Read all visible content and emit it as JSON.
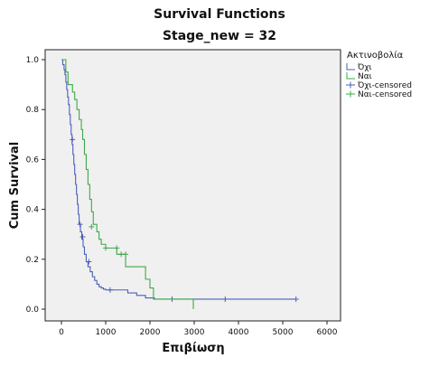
{
  "chart_data": {
    "type": "line",
    "title": "Survival Functions",
    "subtitle": "Stage_new = 32",
    "xlabel": "Επιβίωση",
    "ylabel": "Cum Survival",
    "xlim": [
      0,
      6000
    ],
    "ylim": [
      0,
      1.0
    ],
    "x_ticks": [
      0,
      1000,
      2000,
      3000,
      4000,
      5000,
      6000
    ],
    "y_ticks": [
      0.0,
      0.2,
      0.4,
      0.6,
      0.8,
      1.0
    ],
    "y_tick_labels": [
      "0.0",
      "0.2",
      "0.4",
      "0.6",
      "0.8",
      "1.0"
    ],
    "grid": false,
    "legend_title": "Ακτινοβολία",
    "legend_position": "top-right",
    "legend_entries": [
      "Όχι",
      "Ναι",
      "Όχι-censored",
      "Ναι-censored"
    ],
    "series": [
      {
        "name": "Όχι",
        "censored_name": "Όχι-censored",
        "color": "#4b5fb8",
        "steps": [
          [
            0,
            1.0
          ],
          [
            30,
            0.98
          ],
          [
            60,
            0.96
          ],
          [
            80,
            0.94
          ],
          [
            100,
            0.91
          ],
          [
            120,
            0.88
          ],
          [
            140,
            0.85
          ],
          [
            160,
            0.82
          ],
          [
            180,
            0.78
          ],
          [
            200,
            0.74
          ],
          [
            220,
            0.7
          ],
          [
            240,
            0.66
          ],
          [
            260,
            0.62
          ],
          [
            280,
            0.58
          ],
          [
            300,
            0.54
          ],
          [
            320,
            0.5
          ],
          [
            340,
            0.46
          ],
          [
            360,
            0.42
          ],
          [
            380,
            0.38
          ],
          [
            400,
            0.34
          ],
          [
            430,
            0.31
          ],
          [
            460,
            0.28
          ],
          [
            490,
            0.25
          ],
          [
            520,
            0.22
          ],
          [
            560,
            0.19
          ],
          [
            600,
            0.17
          ],
          [
            650,
            0.15
          ],
          [
            700,
            0.13
          ],
          [
            750,
            0.115
          ],
          [
            800,
            0.1
          ],
          [
            850,
            0.09
          ],
          [
            900,
            0.085
          ],
          [
            950,
            0.08
          ],
          [
            1000,
            0.077
          ],
          [
            1500,
            0.065
          ],
          [
            1700,
            0.055
          ],
          [
            1900,
            0.045
          ],
          [
            2100,
            0.04
          ],
          [
            5300,
            0.04
          ]
        ],
        "censored": [
          [
            250,
            0.68
          ],
          [
            420,
            0.34
          ],
          [
            480,
            0.29
          ],
          [
            620,
            0.19
          ],
          [
            1100,
            0.077
          ],
          [
            2500,
            0.04
          ],
          [
            3700,
            0.04
          ],
          [
            5300,
            0.04
          ]
        ]
      },
      {
        "name": "Ναι",
        "censored_name": "Ναι-censored",
        "color": "#3ea84a",
        "steps": [
          [
            0,
            1.0
          ],
          [
            100,
            0.95
          ],
          [
            150,
            0.9
          ],
          [
            250,
            0.87
          ],
          [
            300,
            0.84
          ],
          [
            350,
            0.8
          ],
          [
            400,
            0.76
          ],
          [
            450,
            0.72
          ],
          [
            480,
            0.68
          ],
          [
            520,
            0.62
          ],
          [
            560,
            0.56
          ],
          [
            600,
            0.5
          ],
          [
            640,
            0.44
          ],
          [
            680,
            0.39
          ],
          [
            720,
            0.34
          ],
          [
            800,
            0.31
          ],
          [
            850,
            0.28
          ],
          [
            900,
            0.26
          ],
          [
            1000,
            0.245
          ],
          [
            1200,
            0.245
          ],
          [
            1250,
            0.22
          ],
          [
            1450,
            0.17
          ],
          [
            1550,
            0.17
          ],
          [
            1800,
            0.17
          ],
          [
            1900,
            0.12
          ],
          [
            2000,
            0.085
          ],
          [
            2080,
            0.04
          ],
          [
            2950,
            0.04
          ],
          [
            2980,
            0.0
          ]
        ],
        "censored": [
          [
            680,
            0.33
          ],
          [
            1000,
            0.245
          ],
          [
            1250,
            0.245
          ],
          [
            1350,
            0.22
          ],
          [
            1450,
            0.22
          ]
        ]
      }
    ]
  }
}
